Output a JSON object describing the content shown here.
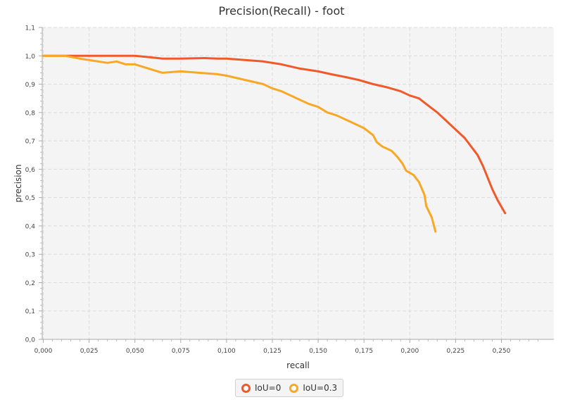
{
  "chart_data": {
    "type": "line",
    "title": "Precision(Recall) - foot",
    "xlabel": "recall",
    "ylabel": "precision",
    "xlim": [
      0.0,
      0.275
    ],
    "ylim": [
      0.0,
      1.1
    ],
    "x_ticks": [
      "0,000",
      "0,025",
      "0,050",
      "0,075",
      "0,100",
      "0,125",
      "0,150",
      "0,175",
      "0,200",
      "0,225",
      "0,250"
    ],
    "y_ticks": [
      "0,0",
      "0,1",
      "0,2",
      "0,3",
      "0,4",
      "0,5",
      "0,6",
      "0,7",
      "0,8",
      "0,9",
      "1,0",
      "1,1"
    ],
    "grid": true,
    "legend_position": "bottom",
    "series": [
      {
        "name": "IoU=0",
        "color": "#f0592a",
        "points": [
          [
            0.0,
            1.0
          ],
          [
            0.05,
            1.0
          ],
          [
            0.058,
            0.995
          ],
          [
            0.065,
            0.99
          ],
          [
            0.075,
            0.99
          ],
          [
            0.088,
            0.992
          ],
          [
            0.095,
            0.99
          ],
          [
            0.1,
            0.99
          ],
          [
            0.11,
            0.985
          ],
          [
            0.12,
            0.98
          ],
          [
            0.13,
            0.97
          ],
          [
            0.14,
            0.955
          ],
          [
            0.15,
            0.945
          ],
          [
            0.157,
            0.935
          ],
          [
            0.165,
            0.925
          ],
          [
            0.172,
            0.915
          ],
          [
            0.18,
            0.9
          ],
          [
            0.187,
            0.89
          ],
          [
            0.195,
            0.875
          ],
          [
            0.2,
            0.86
          ],
          [
            0.205,
            0.85
          ],
          [
            0.21,
            0.825
          ],
          [
            0.215,
            0.8
          ],
          [
            0.22,
            0.77
          ],
          [
            0.225,
            0.74
          ],
          [
            0.23,
            0.71
          ],
          [
            0.237,
            0.65
          ],
          [
            0.24,
            0.61
          ],
          [
            0.245,
            0.53
          ],
          [
            0.248,
            0.49
          ],
          [
            0.252,
            0.445
          ]
        ]
      },
      {
        "name": "IoU=0.3",
        "color": "#f9a825",
        "points": [
          [
            0.0,
            1.0
          ],
          [
            0.012,
            1.0
          ],
          [
            0.02,
            0.99
          ],
          [
            0.03,
            0.98
          ],
          [
            0.035,
            0.975
          ],
          [
            0.04,
            0.98
          ],
          [
            0.045,
            0.97
          ],
          [
            0.05,
            0.97
          ],
          [
            0.055,
            0.96
          ],
          [
            0.06,
            0.95
          ],
          [
            0.065,
            0.94
          ],
          [
            0.075,
            0.945
          ],
          [
            0.085,
            0.94
          ],
          [
            0.095,
            0.935
          ],
          [
            0.1,
            0.93
          ],
          [
            0.11,
            0.915
          ],
          [
            0.12,
            0.9
          ],
          [
            0.125,
            0.885
          ],
          [
            0.13,
            0.875
          ],
          [
            0.135,
            0.86
          ],
          [
            0.14,
            0.845
          ],
          [
            0.145,
            0.83
          ],
          [
            0.15,
            0.82
          ],
          [
            0.155,
            0.8
          ],
          [
            0.16,
            0.79
          ],
          [
            0.165,
            0.775
          ],
          [
            0.17,
            0.76
          ],
          [
            0.175,
            0.745
          ],
          [
            0.18,
            0.72
          ],
          [
            0.182,
            0.695
          ],
          [
            0.185,
            0.68
          ],
          [
            0.19,
            0.665
          ],
          [
            0.193,
            0.645
          ],
          [
            0.196,
            0.62
          ],
          [
            0.198,
            0.595
          ],
          [
            0.202,
            0.58
          ],
          [
            0.205,
            0.555
          ],
          [
            0.208,
            0.51
          ],
          [
            0.209,
            0.47
          ],
          [
            0.212,
            0.43
          ],
          [
            0.214,
            0.38
          ]
        ]
      }
    ]
  }
}
